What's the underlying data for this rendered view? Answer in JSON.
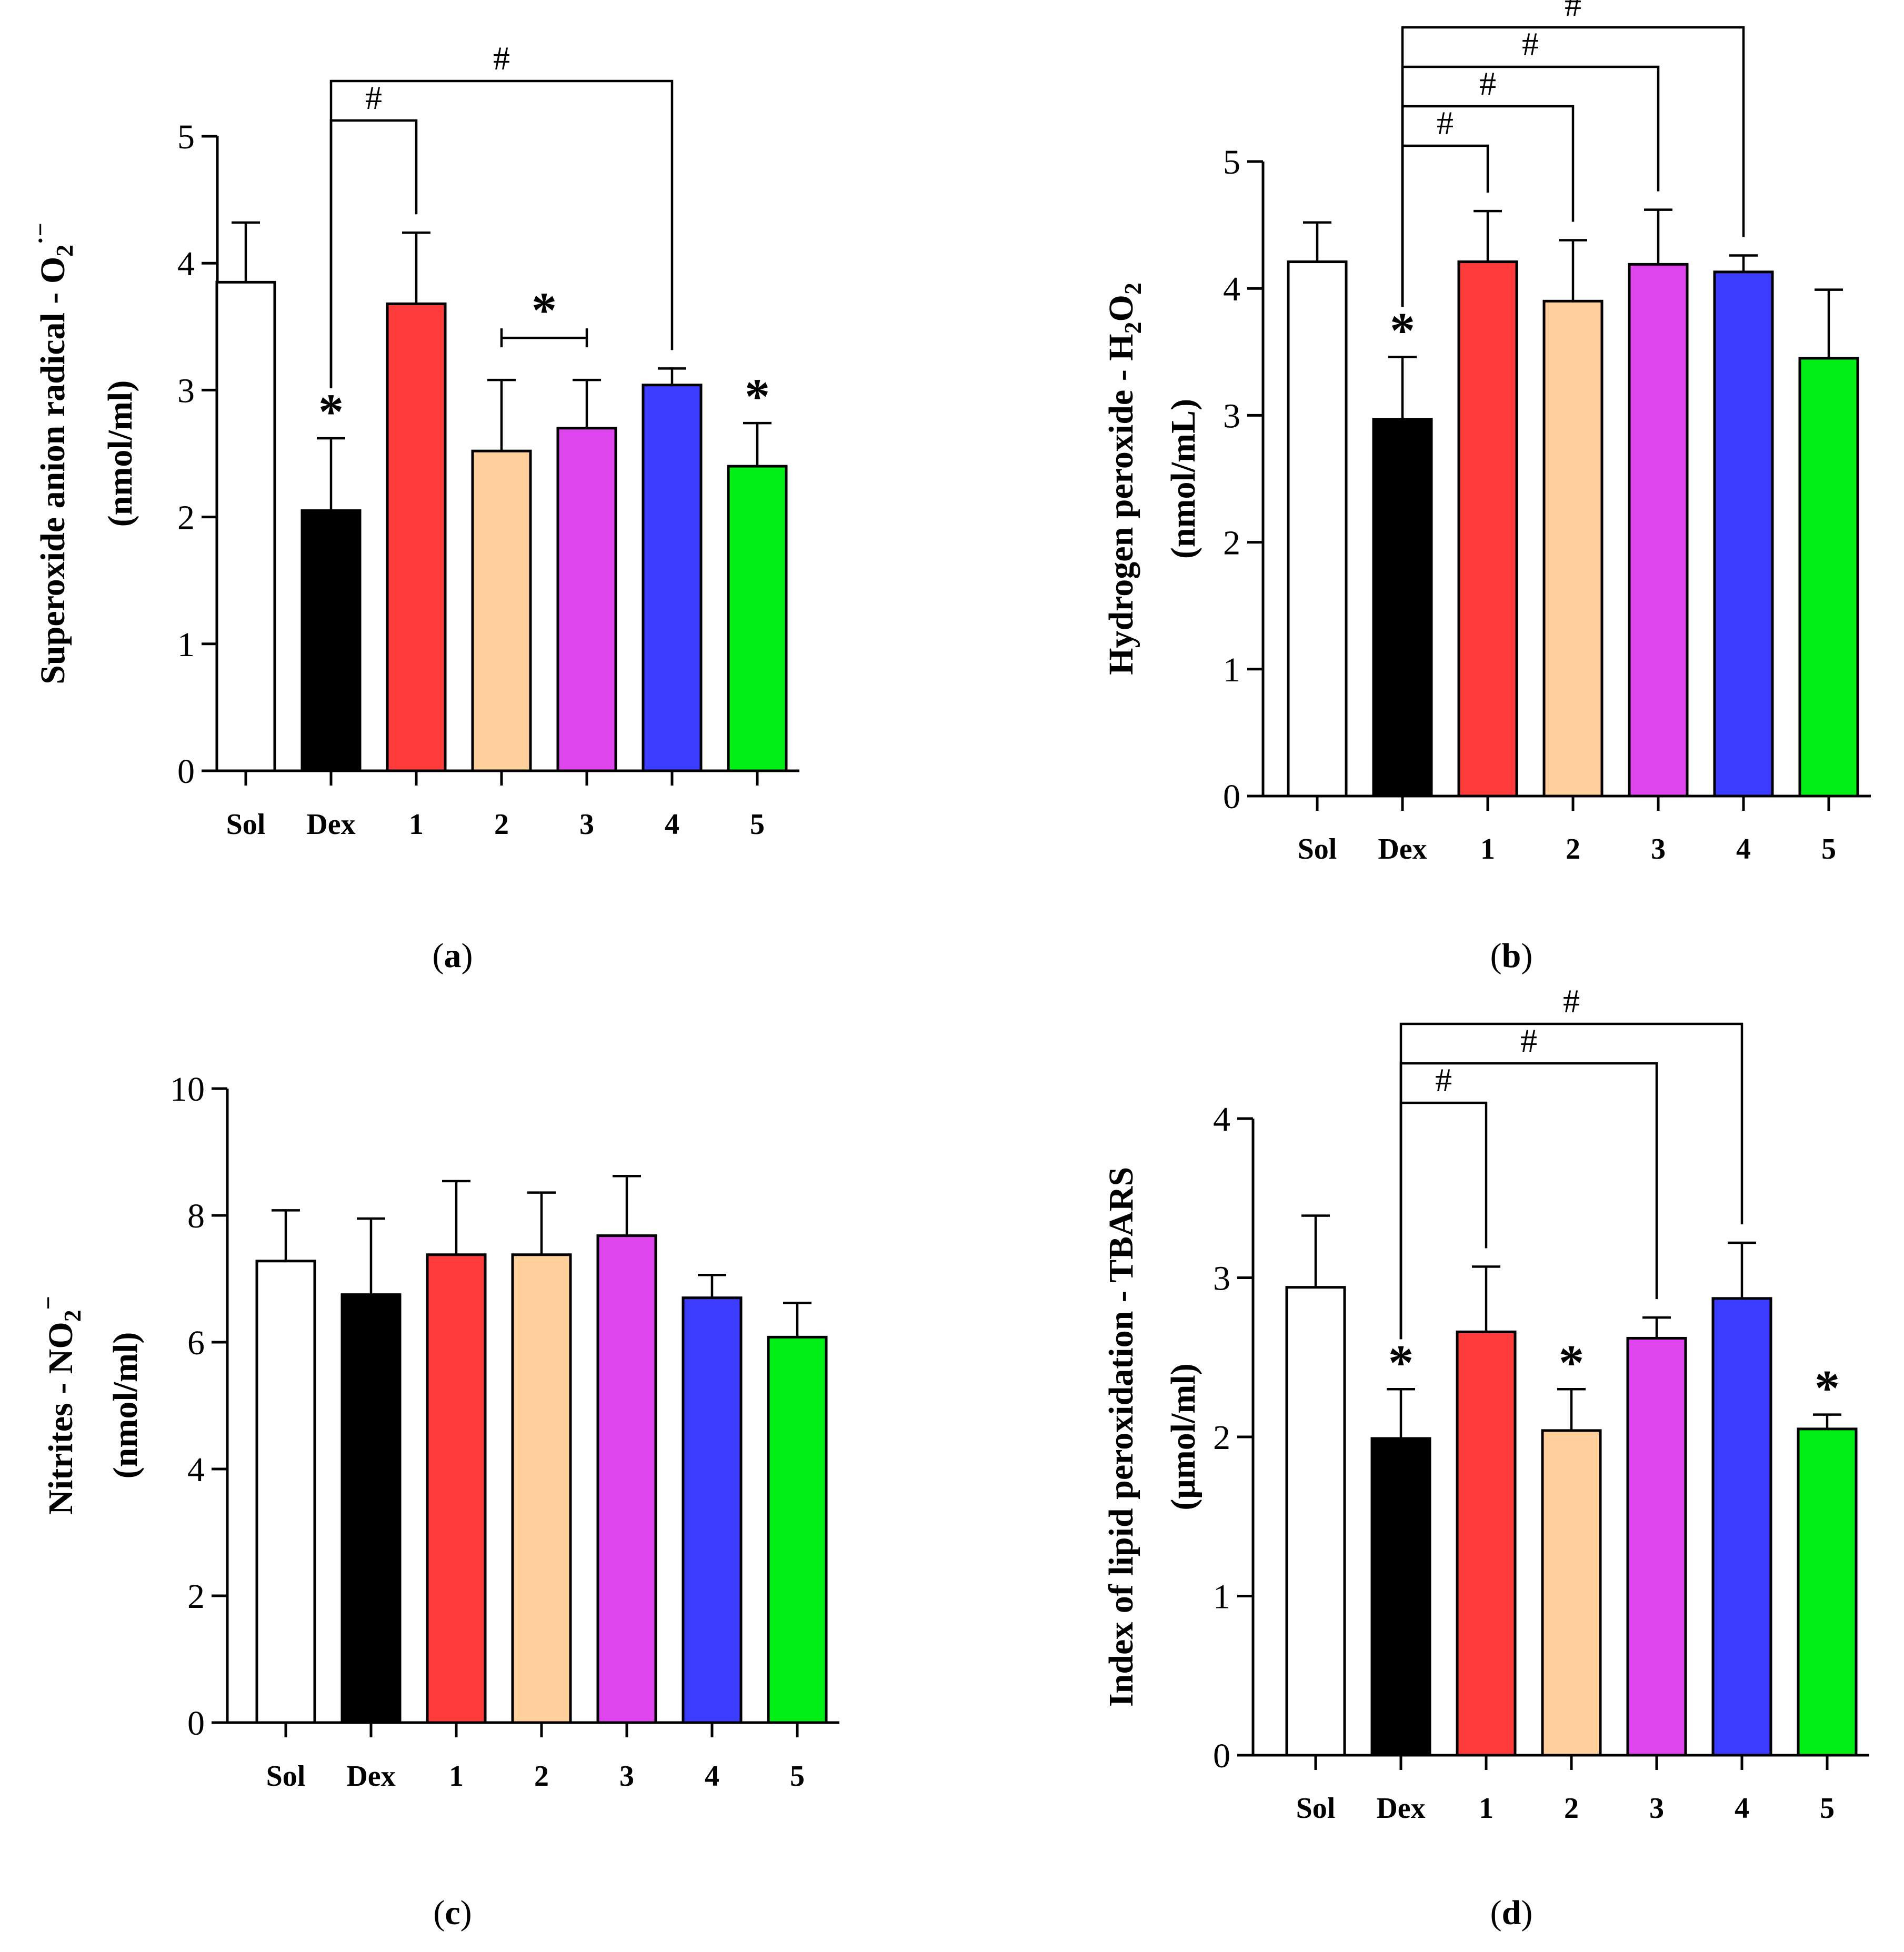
{
  "colors": {
    "Sol": "#ffffff",
    "Dex": "#000000",
    "1": "#ff3b3b",
    "2": "#ffd09b",
    "3": "#df45ec",
    "4": "#3c3cff",
    "5": "#00f015"
  },
  "chart_data": [
    {
      "id": "a",
      "type": "bar",
      "panel_label": "a",
      "ylabel_main": "Superoxide anion radical - O",
      "ylabel_sub": "2",
      "ylabel_sup": "·−",
      "ylabel_unit": "(nmol/ml)",
      "categories": [
        "Sol",
        "Dex",
        "1",
        "2",
        "3",
        "4",
        "5"
      ],
      "values": [
        3.85,
        2.05,
        3.68,
        2.52,
        2.7,
        3.04,
        2.4
      ],
      "errors": [
        0.47,
        0.57,
        0.56,
        0.56,
        0.38,
        0.13,
        0.34
      ],
      "ylim": [
        0,
        5
      ],
      "yticks": [
        "0",
        "1",
        "2",
        "3",
        "4",
        "5"
      ],
      "stars": [
        1,
        6
      ],
      "significance": [
        {
          "from": 1,
          "to": 2,
          "label": "#",
          "type": "comparison"
        },
        {
          "from": 1,
          "to": 5,
          "label": "#",
          "type": "comparison"
        },
        {
          "from": 3,
          "to": 4,
          "label": "*",
          "type": "range"
        }
      ],
      "star_label": "*"
    },
    {
      "id": "b",
      "type": "bar",
      "panel_label": "b",
      "ylabel_main": "Hydrogen peroxide - H",
      "ylabel_sub": "2",
      "ylabel_mid": "O",
      "ylabel_sub2": "2",
      "ylabel_unit": "(nmol/mL)",
      "categories": [
        "Sol",
        "Dex",
        "1",
        "2",
        "3",
        "4",
        "5"
      ],
      "values": [
        4.21,
        2.97,
        4.21,
        3.9,
        4.19,
        4.13,
        3.45
      ],
      "errors": [
        0.31,
        0.49,
        0.4,
        0.48,
        0.43,
        0.13,
        0.54
      ],
      "ylim": [
        0,
        5
      ],
      "yticks": [
        "0",
        "1",
        "2",
        "3",
        "4",
        "5"
      ],
      "stars": [
        1
      ],
      "significance": [
        {
          "from": 1,
          "to": 2,
          "label": "#",
          "type": "comparison"
        },
        {
          "from": 1,
          "to": 3,
          "label": "#",
          "type": "comparison"
        },
        {
          "from": 1,
          "to": 4,
          "label": "#",
          "type": "comparison"
        },
        {
          "from": 1,
          "to": 5,
          "label": "#",
          "type": "comparison"
        }
      ],
      "star_label": "*"
    },
    {
      "id": "c",
      "type": "bar",
      "panel_label": "c",
      "ylabel_main": "Nitrites - NO",
      "ylabel_sub": "2",
      "ylabel_sup": "−",
      "ylabel_unit": "(nmol/ml)",
      "categories": [
        "Sol",
        "Dex",
        "1",
        "2",
        "3",
        "4",
        "5"
      ],
      "values": [
        7.28,
        6.75,
        7.38,
        7.38,
        7.68,
        6.7,
        6.08
      ],
      "errors": [
        0.8,
        1.2,
        1.16,
        0.98,
        0.94,
        0.36,
        0.54
      ],
      "ylim": [
        0,
        10
      ],
      "yticks": [
        "0",
        "2",
        "4",
        "6",
        "8",
        "10"
      ],
      "stars": [],
      "significance": [],
      "star_label": "*"
    },
    {
      "id": "d",
      "type": "bar",
      "panel_label": "d",
      "ylabel_main": "Index of lipid peroxidation - TBARS",
      "ylabel_unit": "(μmol/ml)",
      "categories": [
        "Sol",
        "Dex",
        "1",
        "2",
        "3",
        "4",
        "5"
      ],
      "values": [
        2.94,
        1.99,
        2.66,
        2.04,
        2.62,
        2.87,
        2.05
      ],
      "errors": [
        0.45,
        0.31,
        0.41,
        0.26,
        0.13,
        0.35,
        0.09
      ],
      "ylim": [
        0,
        4
      ],
      "yticks": [
        "0",
        "1",
        "2",
        "3",
        "4"
      ],
      "stars": [
        1,
        3,
        6
      ],
      "significance": [
        {
          "from": 1,
          "to": 2,
          "label": "#",
          "type": "comparison"
        },
        {
          "from": 1,
          "to": 4,
          "label": "#",
          "type": "comparison"
        },
        {
          "from": 1,
          "to": 5,
          "label": "#",
          "type": "comparison"
        }
      ],
      "star_label": "*"
    }
  ]
}
